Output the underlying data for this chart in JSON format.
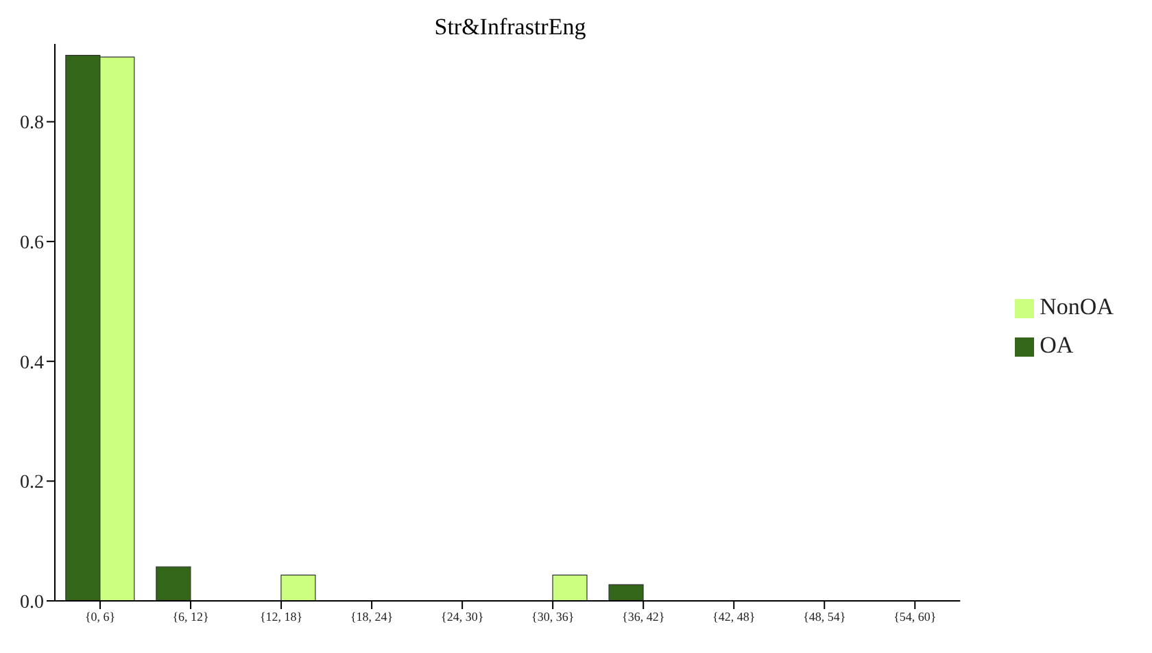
{
  "chart_data": {
    "type": "bar",
    "title": "Str&InfrastrEng",
    "categories": [
      "{0, 6}",
      "{6, 12}",
      "{12, 18}",
      "{18, 24}",
      "{24, 30}",
      "{30, 36}",
      "{36, 42}",
      "{42, 48}",
      "{48, 54}",
      "{54, 60}"
    ],
    "series": [
      {
        "name": "OA",
        "color": "#336619",
        "values": [
          0.911,
          0.057,
          0,
          0,
          0,
          0,
          0.027,
          0,
          0,
          0
        ]
      },
      {
        "name": "NonOA",
        "color": "#ccff80",
        "values": [
          0.908,
          0,
          0.043,
          0,
          0,
          0.043,
          0,
          0,
          0,
          0
        ]
      }
    ],
    "ylim": [
      0,
      0.93
    ],
    "yticks": [
      {
        "value": 0,
        "label": "0.0"
      },
      {
        "value": 0.2,
        "label": "0.2"
      },
      {
        "value": 0.4,
        "label": "0.4"
      },
      {
        "value": 0.6,
        "label": "0.6"
      },
      {
        "value": 0.8,
        "label": "0.8"
      }
    ],
    "grid": false,
    "legend": "right"
  }
}
